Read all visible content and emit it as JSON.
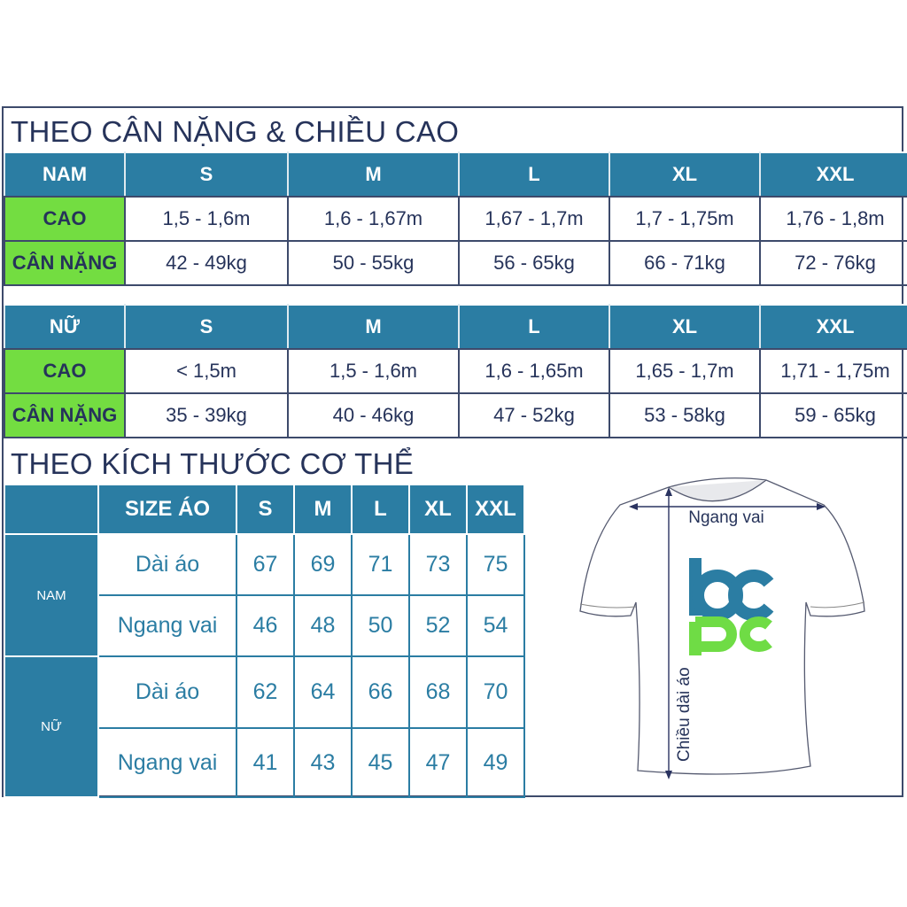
{
  "section1": {
    "title": "THEO CÂN NẶNG & CHIỀU CAO",
    "sizes": [
      "S",
      "M",
      "L",
      "XL",
      "XXL"
    ],
    "male": {
      "label": "NAM",
      "rows": [
        {
          "label": "CAO",
          "values": [
            "1,5 - 1,6m",
            "1,6 - 1,67m",
            "1,67 - 1,7m",
            "1,7 - 1,75m",
            "1,76 - 1,8m"
          ]
        },
        {
          "label": "CÂN NẶNG",
          "values": [
            "42 - 49kg",
            "50 - 55kg",
            "56 - 65kg",
            "66 - 71kg",
            "72 - 76kg"
          ]
        }
      ]
    },
    "female": {
      "label": "NỮ",
      "rows": [
        {
          "label": "CAO",
          "values": [
            "< 1,5m",
            "1,5 - 1,6m",
            "1,6 - 1,65m",
            "1,65 - 1,7m",
            "1,71 - 1,75m"
          ]
        },
        {
          "label": "CÂN NẶNG",
          "values": [
            "35 - 39kg",
            "40 - 46kg",
            "47 - 52kg",
            "53 - 58kg",
            "59 - 65kg"
          ]
        }
      ]
    }
  },
  "section2": {
    "title": "THEO KÍCH THƯỚC CƠ THỂ",
    "header": "SIZE ÁO",
    "sizes": [
      "S",
      "M",
      "L",
      "XL",
      "XXL"
    ],
    "groups": [
      {
        "label": "NAM",
        "rows": [
          {
            "label": "Dài áo",
            "values": [
              "67",
              "69",
              "71",
              "73",
              "75"
            ]
          },
          {
            "label": "Ngang vai",
            "values": [
              "46",
              "48",
              "50",
              "52",
              "54"
            ]
          }
        ]
      },
      {
        "label": "NỮ",
        "rows": [
          {
            "label": "Dài áo",
            "values": [
              "62",
              "64",
              "66",
              "68",
              "70"
            ]
          },
          {
            "label": "Ngang vai",
            "values": [
              "41",
              "43",
              "45",
              "47",
              "49"
            ]
          }
        ]
      }
    ]
  },
  "diagram": {
    "shoulder_label": "Ngang vai",
    "length_label": "Chiều dài áo",
    "logo_text": "bcpc"
  },
  "colors": {
    "header": "#2b7da3",
    "label_green": "#73dd41",
    "text": "#26335a",
    "logo_green": "#6fdc45"
  }
}
